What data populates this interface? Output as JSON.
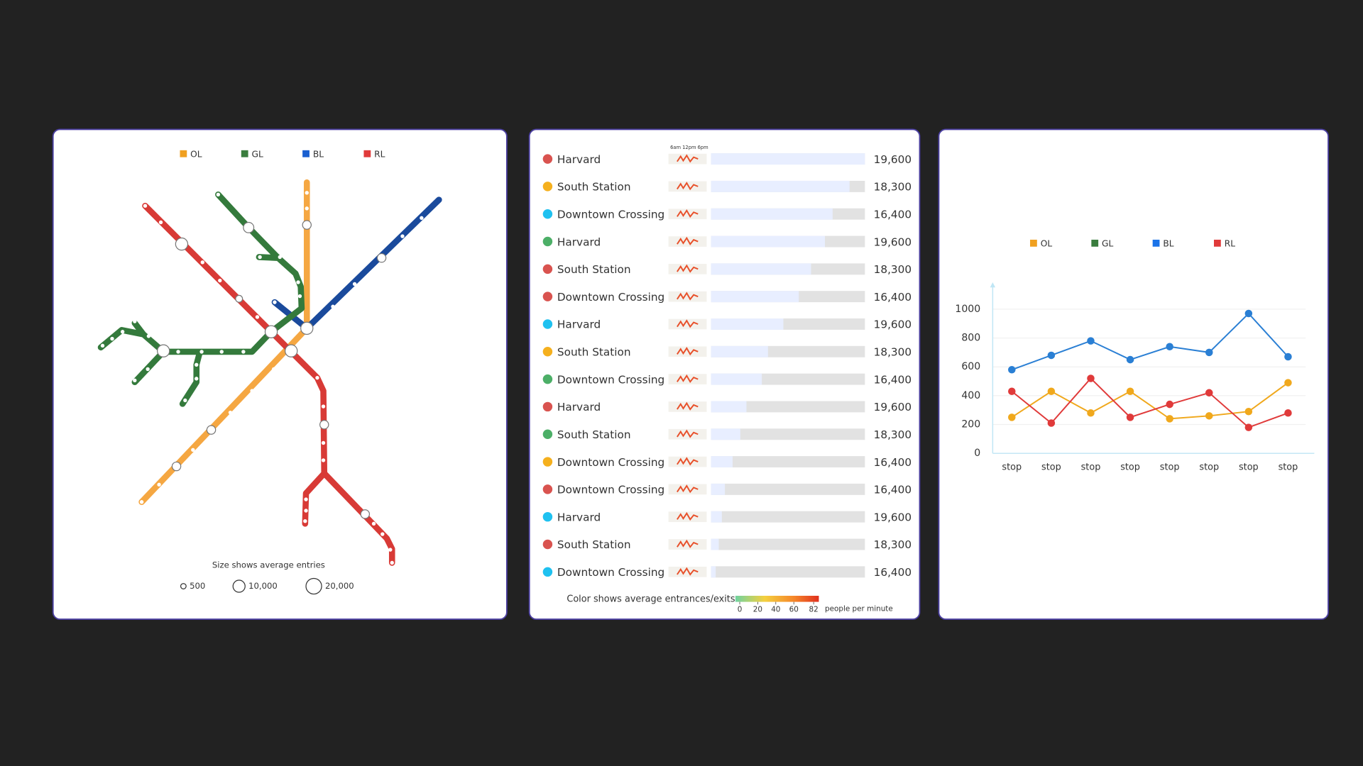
{
  "map_panel": {
    "legend": [
      {
        "name": "OL",
        "color": "#f0a020"
      },
      {
        "name": "GL",
        "color": "#3a7d3e"
      },
      {
        "name": "BL",
        "color": "#1a5fd0"
      },
      {
        "name": "RL",
        "color": "#e03a3a"
      }
    ],
    "size_caption": "Size shows average entries",
    "size_legend": [
      {
        "value": 500,
        "label": "500"
      },
      {
        "value": 10000,
        "label": "10,000"
      },
      {
        "value": 20000,
        "label": "20,000"
      }
    ]
  },
  "station_panel": {
    "sparkline_header": "6am 12pm 6pm",
    "rows": [
      {
        "name": "Harvard",
        "color": "#d9534f",
        "bar_share": 100,
        "value": "19,600"
      },
      {
        "name": "South Station",
        "color": "#f5b01e",
        "bar_share": 90,
        "value": "18,300"
      },
      {
        "name": "Downtown Crossing",
        "color": "#1fc1f0",
        "bar_share": 79,
        "value": "16,400"
      },
      {
        "name": "Harvard",
        "color": "#4caf67",
        "bar_share": 74,
        "value": "19,600"
      },
      {
        "name": "South Station",
        "color": "#d9534f",
        "bar_share": 65,
        "value": "18,300"
      },
      {
        "name": "Downtown Crossing",
        "color": "#d9534f",
        "bar_share": 57,
        "value": "16,400"
      },
      {
        "name": "Harvard",
        "color": "#1fc1f0",
        "bar_share": 47,
        "value": "19,600"
      },
      {
        "name": "South Station",
        "color": "#f5b01e",
        "bar_share": 37,
        "value": "18,300"
      },
      {
        "name": "Downtown Crossing",
        "color": "#4caf67",
        "bar_share": 33,
        "value": "16,400"
      },
      {
        "name": "Harvard",
        "color": "#d9534f",
        "bar_share": 23,
        "value": "19,600"
      },
      {
        "name": "South Station",
        "color": "#4caf67",
        "bar_share": 19,
        "value": "18,300"
      },
      {
        "name": "Downtown Crossing",
        "color": "#f5b01e",
        "bar_share": 14,
        "value": "16,400"
      },
      {
        "name": "Downtown Crossing",
        "color": "#d9534f",
        "bar_share": 9,
        "value": "16,400"
      },
      {
        "name": "Harvard",
        "color": "#1fc1f0",
        "bar_share": 7,
        "value": "19,600"
      },
      {
        "name": "South Station",
        "color": "#d9534f",
        "bar_share": 5,
        "value": "18,300"
      },
      {
        "name": "Downtown Crossing",
        "color": "#1fc1f0",
        "bar_share": 3,
        "value": "16,400"
      }
    ],
    "color_legend": {
      "title": "Color shows average entrances/exits",
      "ticks": [
        0,
        20,
        40,
        60,
        82
      ],
      "unit": "people per minute"
    }
  },
  "chart_data": {
    "type": "line",
    "legend": [
      {
        "name": "OL",
        "color": "#f0a020"
      },
      {
        "name": "GL",
        "color": "#3a7d3e"
      },
      {
        "name": "BL",
        "color": "#1a73e8"
      },
      {
        "name": "RL",
        "color": "#e03a3a"
      }
    ],
    "categories": [
      "stop",
      "stop",
      "stop",
      "stop",
      "stop",
      "stop",
      "stop",
      "stop"
    ],
    "series": [
      {
        "color": "#2a7fd4",
        "values": [
          580,
          680,
          780,
          650,
          740,
          700,
          970,
          670
        ]
      },
      {
        "color": "#f0a81c",
        "values": [
          250,
          430,
          280,
          430,
          240,
          260,
          290,
          490
        ]
      },
      {
        "color": "#e03a3a",
        "values": [
          430,
          210,
          520,
          250,
          340,
          420,
          180,
          280
        ]
      }
    ],
    "ylim": [
      0,
      1000
    ],
    "yticks": [
      0,
      200,
      400,
      600,
      800,
      1000
    ],
    "grid": true
  }
}
